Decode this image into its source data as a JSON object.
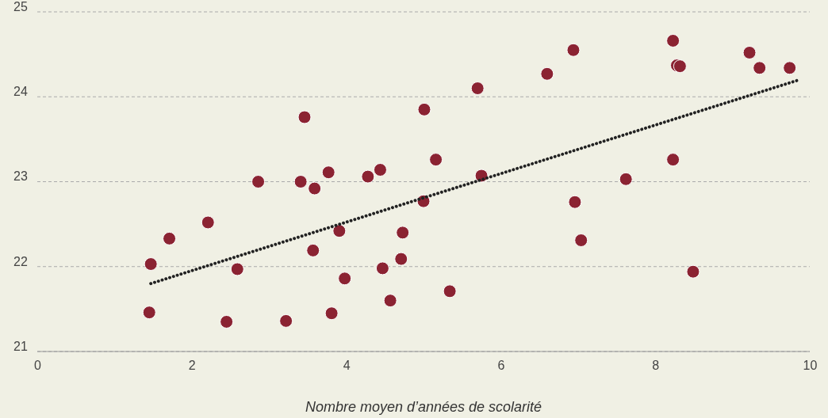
{
  "chart_data": {
    "type": "scatter",
    "xlabel": "Nombre moyen d’années de scolarité",
    "xlim": [
      0,
      10
    ],
    "xticks": [
      0,
      2,
      4,
      6,
      8,
      10
    ],
    "ylim": [
      21,
      25
    ],
    "yticks": [
      21,
      22,
      23,
      24,
      25
    ],
    "grid": "y",
    "marker": "circle",
    "series": [
      {
        "color": "#8b2332",
        "x": [
          1.45,
          1.47,
          1.71,
          2.21,
          2.59,
          2.45,
          2.86,
          3.22,
          3.41,
          3.46,
          3.59,
          3.57,
          3.77,
          3.81,
          3.91,
          3.98,
          4.28,
          4.44,
          4.47,
          4.57,
          4.73,
          4.71,
          5.0,
          5.01,
          5.16,
          5.34,
          5.7,
          5.75,
          6.6,
          6.94,
          6.96,
          7.04,
          7.62,
          8.23,
          8.23,
          8.28,
          8.32,
          8.49,
          9.22,
          9.35,
          9.74
        ],
        "values": [
          21.46,
          22.03,
          22.33,
          22.52,
          21.97,
          21.35,
          23.0,
          21.36,
          23.0,
          23.76,
          22.92,
          22.19,
          23.11,
          21.45,
          22.42,
          21.86,
          23.06,
          23.14,
          21.98,
          21.6,
          22.4,
          22.09,
          22.77,
          23.85,
          23.26,
          21.71,
          24.1,
          23.07,
          24.27,
          24.55,
          22.76,
          22.31,
          23.03,
          24.66,
          23.26,
          24.37,
          24.36,
          21.94,
          24.52,
          24.34,
          24.34
        ]
      },
      {
        "type": "line",
        "color": "#222222",
        "line_style": "dotted",
        "marker": "none",
        "x": [
          1.47,
          9.83
        ],
        "values": [
          21.8,
          24.19
        ]
      }
    ]
  }
}
